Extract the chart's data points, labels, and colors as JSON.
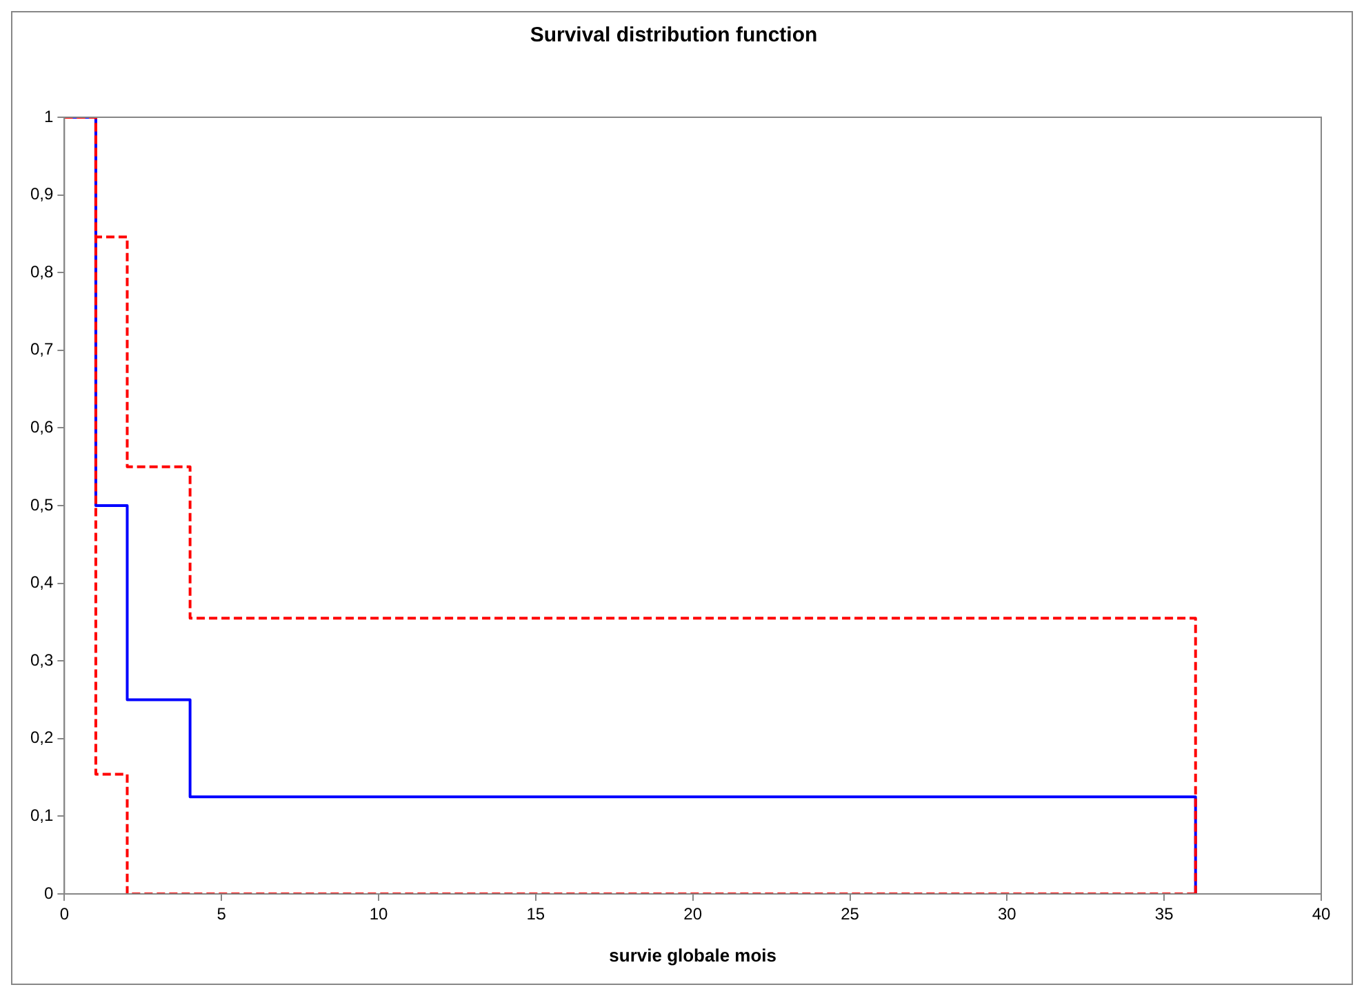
{
  "chart_data": {
    "type": "step",
    "title": "Survival distribution function",
    "xlabel": "survie globale mois",
    "xlim": [
      0,
      40
    ],
    "xticks": [
      0,
      5,
      10,
      15,
      20,
      25,
      30,
      35,
      40
    ],
    "ylim": [
      0,
      1
    ],
    "yticks": [
      0,
      {
        "value": 0.1,
        "label": "0,1"
      },
      {
        "value": 0.2,
        "label": "0,2"
      },
      {
        "value": 0.3,
        "label": "0,3"
      },
      {
        "value": 0.4,
        "label": "0,4"
      },
      {
        "value": 0.5,
        "label": "0,5"
      },
      {
        "value": 0.6,
        "label": "0,6"
      },
      {
        "value": 0.7,
        "label": "0,7"
      },
      {
        "value": 0.8,
        "label": "0,8"
      },
      {
        "value": 0.9,
        "label": "0,9"
      },
      1
    ],
    "grid": false,
    "legend": false,
    "series": [
      {
        "color": "#ff0000",
        "line_style": "dashed",
        "x": [
          0,
          1,
          2,
          4,
          36
        ],
        "values": [
          1,
          0.846,
          0.55,
          0.355,
          0
        ]
      },
      {
        "color": "#ff0000",
        "line_style": "dashed",
        "x": [
          0,
          1,
          2,
          36
        ],
        "values": [
          1,
          0.154,
          0,
          0
        ]
      },
      {
        "color": "#0000ff",
        "line_style": "solid",
        "x": [
          0,
          1,
          2,
          4,
          36
        ],
        "values": [
          1,
          0.5,
          0.25,
          0.125,
          0
        ]
      }
    ]
  }
}
